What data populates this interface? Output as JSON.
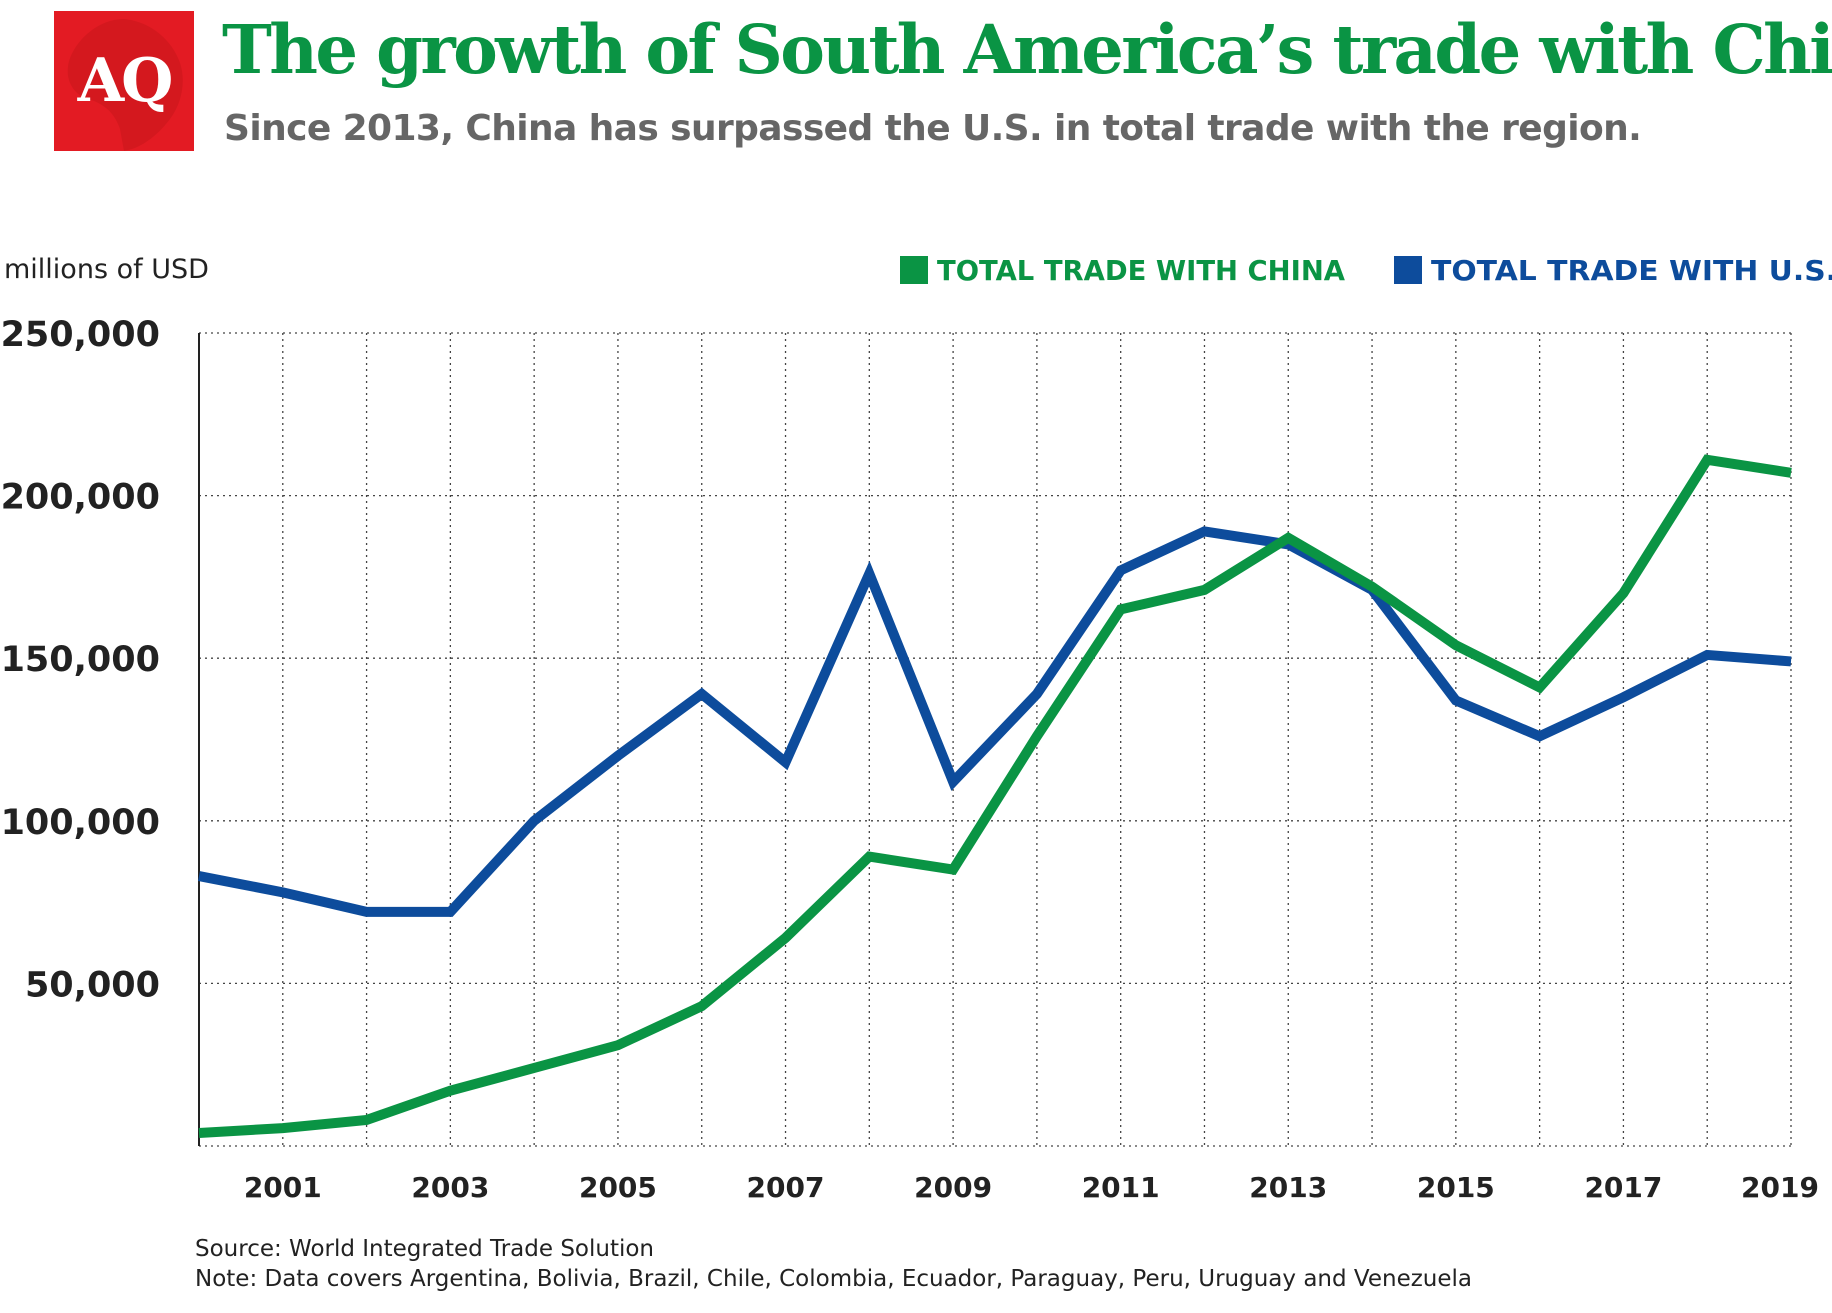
{
  "header": {
    "logo_text": "AQ",
    "title": "The growth of South America’s trade with China",
    "subtitle": "Since 2013, China has surpassed the U.S. in total trade with the region."
  },
  "footer": {
    "source": "Source: World Integrated Trade Solution",
    "note": "Note: Data covers Argentina, Bolivia, Brazil, Chile, Colombia, Ecuador, Paraguay, Peru, Uruguay and Venezuela"
  },
  "chart_data": {
    "type": "line",
    "title": "The growth of South America’s trade with China",
    "subtitle": "Since 2013, China has surpassed the U.S. in total trade with the region.",
    "ylabel": "millions of USD",
    "xlabel": "",
    "x": [
      2000,
      2001,
      2002,
      2003,
      2004,
      2005,
      2006,
      2007,
      2008,
      2009,
      2010,
      2011,
      2012,
      2013,
      2014,
      2015,
      2016,
      2017,
      2018,
      2019
    ],
    "x_tick_labels": [
      "2001",
      "2003",
      "2005",
      "2007",
      "2009",
      "2011",
      "2013",
      "2015",
      "2017",
      "2019"
    ],
    "y_tick_labels": [
      "250,000",
      "200,000",
      "150,000",
      "100,000",
      "50,000"
    ],
    "ylim": [
      0,
      250000
    ],
    "grid": true,
    "legend_position": "top-right",
    "series": [
      {
        "name": "TOTAL TRADE WITH CHINA",
        "color": "#0a9444",
        "values": [
          4000,
          5500,
          8000,
          17000,
          24000,
          31000,
          43000,
          64000,
          89000,
          85000,
          126000,
          165000,
          171000,
          187000,
          172000,
          154000,
          141000,
          170000,
          211000,
          207000
        ]
      },
      {
        "name": "TOTAL TRADE WITH U.S.",
        "color": "#0d4c9c",
        "values": [
          83000,
          78000,
          72000,
          72000,
          100000,
          120000,
          139000,
          118000,
          176000,
          112000,
          139000,
          177000,
          189000,
          185000,
          171000,
          137000,
          126000,
          138000,
          151000,
          149000
        ]
      }
    ]
  }
}
